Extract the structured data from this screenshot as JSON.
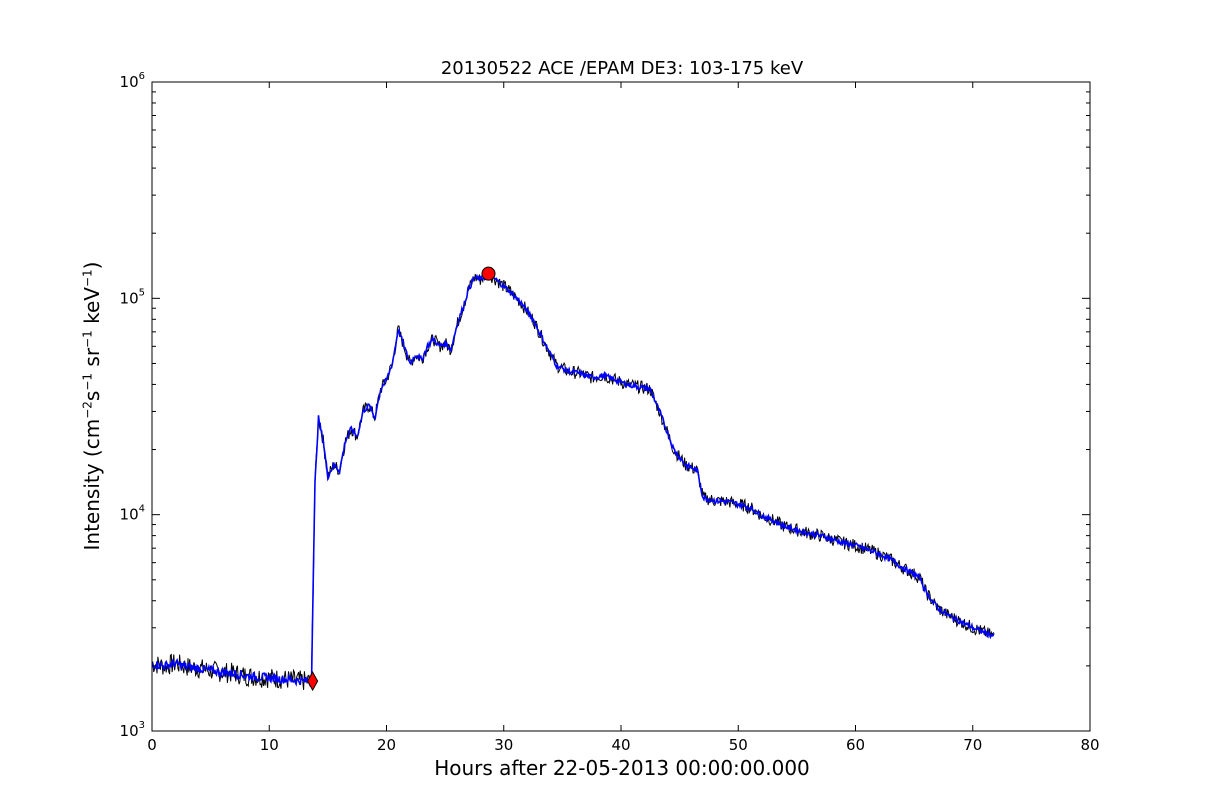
{
  "chart_data": {
    "type": "line",
    "title": "20130522 ACE /EPAM DE3: 103-175 keV",
    "xlabel": "Hours after 22-05-2013 00:00:00.000",
    "ylabel": {
      "prefix": "Intensity (cm",
      "exp1": "−2",
      "s": "s",
      "exp2": "−1",
      "sr": "sr",
      "exp3": "−1",
      "kev": "keV",
      "exp4": "−1",
      "suffix": ")"
    },
    "xlim": [
      0,
      80
    ],
    "ylim": [
      1000,
      1000000
    ],
    "yscale": "log",
    "grid": false,
    "xticks": [
      "0",
      "10",
      "20",
      "30",
      "40",
      "50",
      "60",
      "70",
      "80"
    ],
    "yticks": [
      {
        "base": "10",
        "exp": "3"
      },
      {
        "base": "10",
        "exp": "4"
      },
      {
        "base": "10",
        "exp": "5"
      },
      {
        "base": "10",
        "exp": "6"
      }
    ],
    "series": [
      {
        "color": "#0000ff",
        "x": [
          0,
          1,
          2,
          3,
          4,
          5,
          6,
          7,
          8,
          9,
          10,
          11,
          12,
          13,
          13.6,
          13.9,
          14.2,
          14.6,
          15.0,
          15.5,
          16.0,
          16.5,
          17.0,
          17.5,
          18.0,
          18.5,
          19.0,
          19.5,
          20.0,
          20.5,
          21.0,
          21.5,
          22.0,
          22.5,
          23.0,
          23.5,
          24.0,
          24.5,
          25.0,
          25.5,
          26.0,
          26.5,
          27.0,
          27.5,
          28.0,
          28.7,
          29.5,
          30.5,
          31.5,
          32.5,
          33.5,
          34.5,
          35.5,
          36.5,
          37.5,
          38.5,
          39.5,
          40.5,
          41.5,
          42.5,
          43.5,
          44.5,
          45.5,
          46.5,
          47.0,
          48.0,
          49.0,
          50.0,
          51.0,
          52.0,
          53.0,
          54.0,
          55.0,
          56.0,
          57.0,
          58.0,
          59.0,
          60.0,
          61.0,
          62.0,
          63.0,
          64.0,
          65.0,
          65.5,
          66.0,
          67.0,
          68.0,
          69.0,
          70.0,
          71.0,
          71.8
        ],
        "y": [
          2050,
          2000,
          2050,
          1980,
          1950,
          1900,
          1870,
          1850,
          1800,
          1780,
          1760,
          1740,
          1720,
          1700,
          1700,
          14000,
          28000,
          22000,
          15000,
          17000,
          16000,
          22000,
          25000,
          23000,
          30000,
          32000,
          28000,
          38000,
          42000,
          50000,
          72000,
          60000,
          50000,
          55000,
          52000,
          60000,
          65000,
          60000,
          62000,
          58000,
          75000,
          90000,
          110000,
          125000,
          122000,
          130000,
          120000,
          108000,
          95000,
          80000,
          62000,
          49000,
          46000,
          45000,
          43000,
          44000,
          42000,
          40000,
          39000,
          38000,
          28000,
          20000,
          17000,
          16000,
          12000,
          11600,
          11500,
          11200,
          10800,
          9900,
          9400,
          8800,
          8500,
          8200,
          8000,
          7700,
          7400,
          7200,
          6900,
          6600,
          6200,
          5700,
          5300,
          5100,
          4400,
          3700,
          3400,
          3200,
          3000,
          2850,
          2750
        ]
      }
    ],
    "markers": [
      {
        "shape": "circle",
        "color": "#ff0000",
        "x": 28.7,
        "y": 130000
      },
      {
        "shape": "diamond",
        "color": "#ff0000",
        "x": 13.7,
        "y": 1700
      }
    ]
  }
}
